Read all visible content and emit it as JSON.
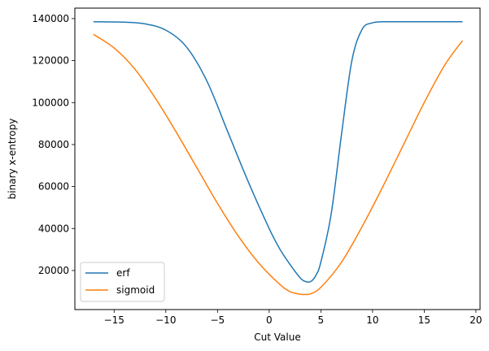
{
  "chart_data": {
    "type": "line",
    "xlabel": "Cut Value",
    "ylabel": "binary x-entropy",
    "xlim": [
      -18.8,
      20.4
    ],
    "ylim": [
      1400,
      145000
    ],
    "x_ticks": [
      -15,
      -10,
      -5,
      0,
      5,
      10,
      15,
      20
    ],
    "x_tick_labels": [
      "−15",
      "−10",
      "−5",
      "0",
      "5",
      "10",
      "15",
      "20"
    ],
    "y_ticks": [
      20000,
      40000,
      60000,
      80000,
      100000,
      120000,
      140000
    ],
    "y_tick_labels": [
      "20000",
      "40000",
      "60000",
      "80000",
      "100000",
      "120000",
      "140000"
    ],
    "grid": false,
    "legend_position": "lower-left",
    "series": [
      {
        "name": "erf",
        "color": "#1f77b4",
        "x": [
          -17,
          -14,
          -12,
          -10,
          -8,
          -6,
          -4,
          -2,
          0,
          1,
          2,
          3,
          3.5,
          4,
          4.5,
          5,
          6,
          7,
          8,
          9,
          10,
          11,
          12,
          15,
          18.7
        ],
        "y": [
          138500,
          138300,
          137500,
          134500,
          126500,
          110000,
          86000,
          62000,
          40000,
          30500,
          23000,
          16500,
          14800,
          14700,
          17500,
          24000,
          47000,
          85000,
          120000,
          135000,
          138000,
          138500,
          138500,
          138500,
          138500
        ]
      },
      {
        "name": "sigmoid",
        "color": "#ff7f0e",
        "x": [
          -17,
          -15,
          -13,
          -11,
          -9,
          -7,
          -5,
          -3,
          -1,
          1,
          2,
          3,
          3.5,
          4,
          5,
          7,
          9,
          11,
          13,
          15,
          17,
          18.7
        ],
        "y": [
          132500,
          126000,
          116000,
          102000,
          86000,
          69000,
          52000,
          36500,
          23500,
          13500,
          10000,
          8700,
          8600,
          8900,
          12000,
          24000,
          41000,
          60000,
          80000,
          100000,
          118000,
          129500
        ]
      }
    ]
  }
}
